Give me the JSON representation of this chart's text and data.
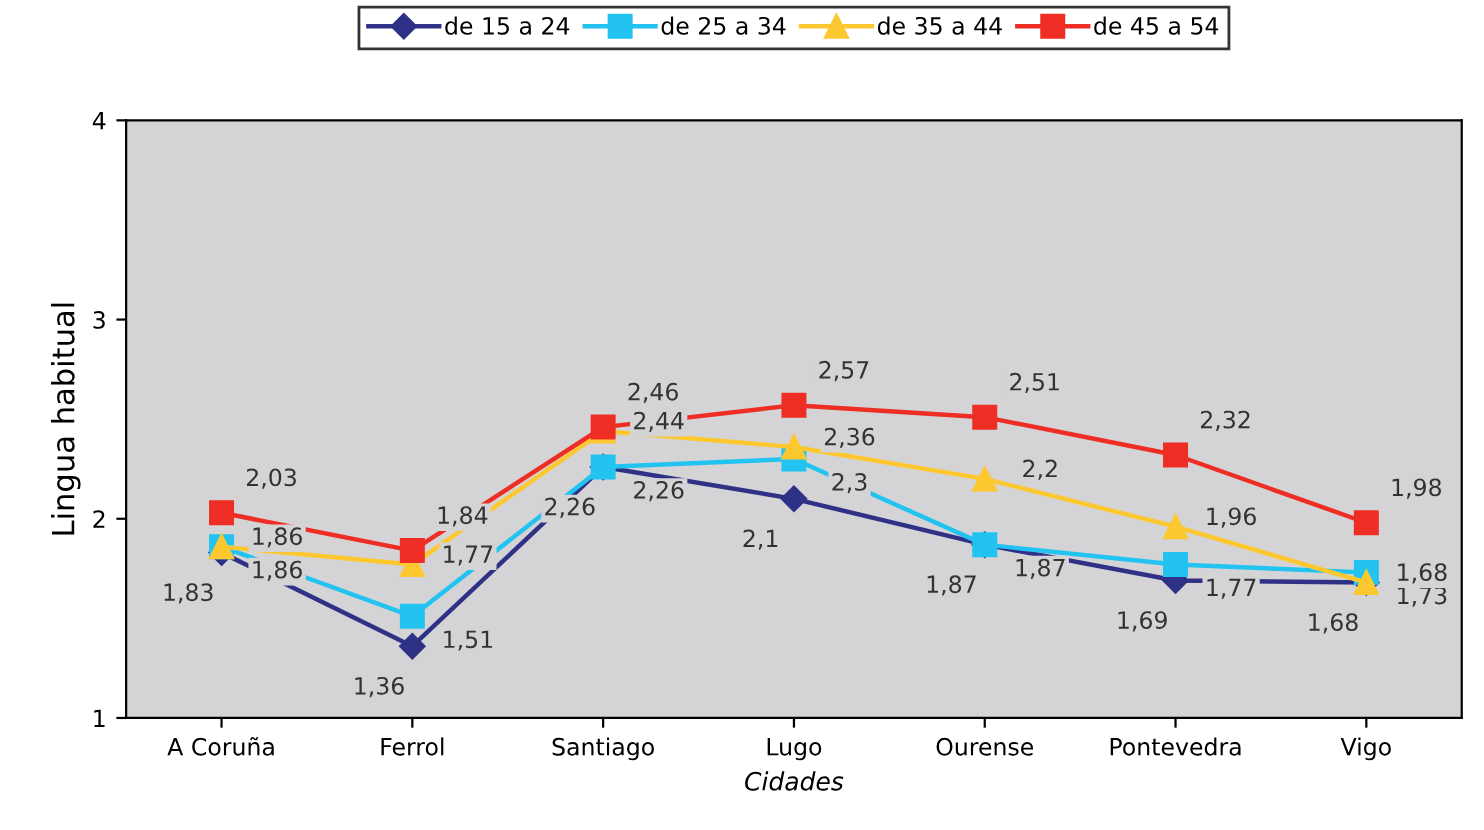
{
  "chart_data": {
    "type": "line",
    "categories": [
      "A Coruña",
      "Ferrol",
      "Santiago",
      "Lugo",
      "Ourense",
      "Pontevedra",
      "Vigo"
    ],
    "xlabel": "Cidades",
    "ylabel": "Lingua habitual",
    "ylim": [
      1,
      4
    ],
    "yticks": [
      1,
      2,
      3,
      4
    ],
    "grid": false,
    "legend": "top",
    "series": [
      {
        "name": "de 15 a 24",
        "color": "#2e3185",
        "marker": "diamond",
        "values": [
          1.83,
          1.36,
          2.26,
          2.1,
          1.87,
          1.69,
          1.68
        ],
        "value_labels": [
          "1,83",
          "1,36",
          "2,26",
          "2,1",
          "1,87",
          "1,69",
          "1,68"
        ]
      },
      {
        "name": "de 25 a 34",
        "color": "#22c3f0",
        "marker": "square",
        "values": [
          1.86,
          1.51,
          2.26,
          2.3,
          1.87,
          1.77,
          1.73
        ],
        "value_labels": [
          "1,86",
          "1,51",
          "2,26",
          "2,3",
          "1,87",
          "1,77",
          "1,73"
        ]
      },
      {
        "name": "de 35 a 44",
        "color": "#fdc82f",
        "marker": "triangle",
        "values": [
          1.86,
          1.77,
          2.44,
          2.36,
          2.2,
          1.96,
          1.68
        ],
        "value_labels": [
          "1,86",
          "1,77",
          "2,44",
          "2,36",
          "2,2",
          "1,96",
          "1,68"
        ]
      },
      {
        "name": "de 45 a 54",
        "color": "#ee2e24",
        "marker": "square",
        "values": [
          2.03,
          1.84,
          2.46,
          2.57,
          2.51,
          2.32,
          1.98
        ],
        "value_labels": [
          "2,03",
          "1,84",
          "2,46",
          "2,57",
          "2,51",
          "2,32",
          "1,98"
        ]
      }
    ]
  }
}
